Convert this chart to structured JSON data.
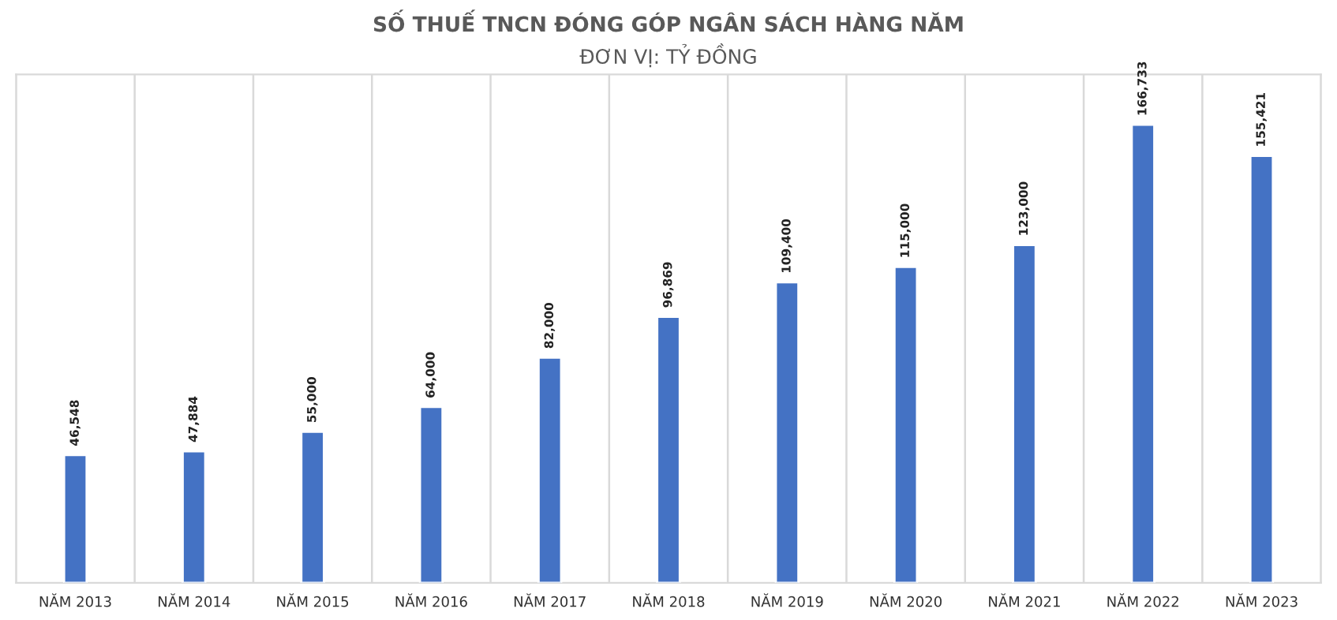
{
  "chart_data": {
    "type": "bar",
    "title": "SỐ THUẾ TNCN ĐÓNG GÓP NGÂN SÁCH HÀNG NĂM",
    "subtitle": "ĐƠN VỊ: TỶ ĐỒNG",
    "categories": [
      "NĂM 2013",
      "NĂM 2014",
      "NĂM 2015",
      "NĂM 2016",
      "NĂM 2017",
      "NĂM 2018",
      "NĂM 2019",
      "NĂM 2020",
      "NĂM 2021",
      "NĂM 2022",
      "NĂM 2023"
    ],
    "values": [
      46548,
      47884,
      55000,
      64000,
      82000,
      96869,
      109400,
      115000,
      123000,
      166733,
      155421
    ],
    "value_labels": [
      "46,548",
      "47,884",
      "55,000",
      "64,000",
      "82,000",
      "96,869",
      "109,400",
      "115,000",
      "123,000",
      "166,733",
      "155,421"
    ],
    "color": "#4472c4",
    "grid": "x",
    "tick_labels": "x"
  }
}
